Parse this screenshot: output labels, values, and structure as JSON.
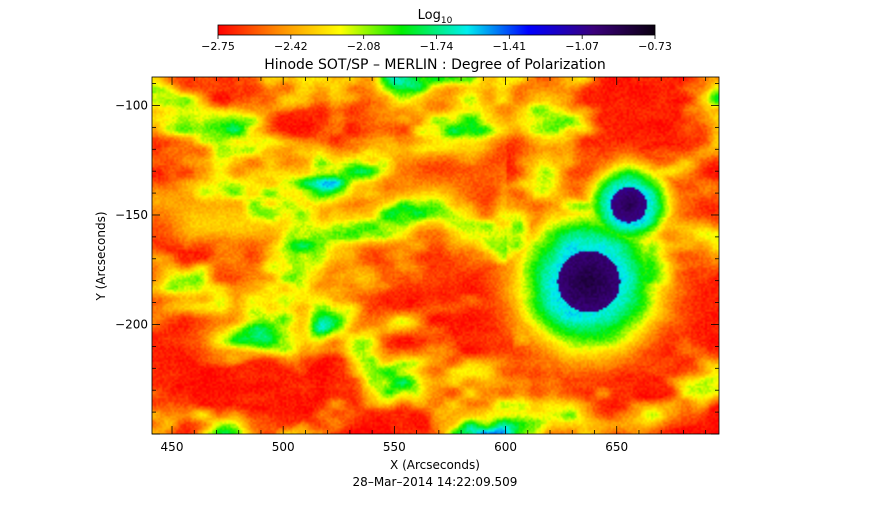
{
  "chart_data": {
    "type": "heatmap",
    "title": "Hinode SOT/SP – MERLIN : Degree of Polarization",
    "xlabel": "X (Arcseconds)",
    "ylabel": "Y (Arcseconds)",
    "subtitle": "28–Mar–2014 14:22:09.509",
    "xlim": [
      441,
      696
    ],
    "ylim": [
      -250,
      -87
    ],
    "xticks": [
      450,
      500,
      550,
      600,
      650
    ],
    "yticks": [
      -100,
      -150,
      -200
    ],
    "colorbar": {
      "label": "Log",
      "label_subscript": "10",
      "colormap": "rainbow (red → violet)",
      "range": [
        -2.75,
        -0.73
      ],
      "ticks": [
        "−2.75",
        "−2.42",
        "−2.08",
        "−1.74",
        "−1.41",
        "−1.07",
        "−0.73"
      ],
      "colors": [
        "#ff0000",
        "#ff8c00",
        "#ffff00",
        "#00ee00",
        "#00eeee",
        "#0000ff",
        "#3a007a",
        "#0a0010"
      ]
    },
    "features": [
      {
        "name": "large sunspot",
        "x": 637,
        "y": -180,
        "radius_arcsec": 14,
        "log_value": -0.85
      },
      {
        "name": "small sunspot",
        "x": 655,
        "y": -145,
        "radius_arcsec": 8,
        "log_value": -0.9
      }
    ],
    "background_log_value": -2.6
  }
}
